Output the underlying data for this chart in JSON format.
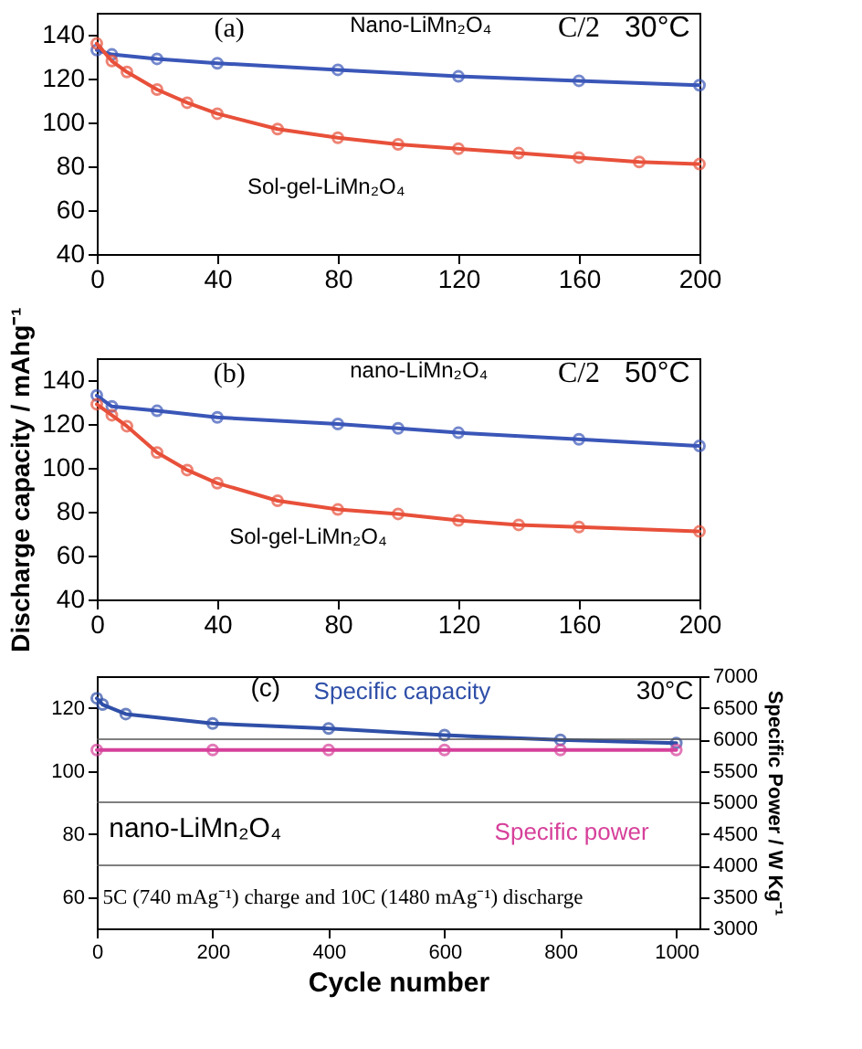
{
  "chart_data": [
    {
      "type": "line",
      "marker": "circle",
      "xlim": [
        0,
        200
      ],
      "xticks": [
        0,
        40,
        80,
        120,
        160,
        200
      ],
      "ylim": [
        40,
        150
      ],
      "yticks": [
        40,
        60,
        80,
        100,
        120,
        140
      ],
      "annotations": [
        "(a)",
        "C/2",
        "30°C"
      ],
      "series": [
        {
          "name": "Nano-LiMn₂O₄",
          "color": "#3a56b8",
          "x": [
            0,
            5,
            20,
            40,
            80,
            120,
            160,
            200
          ],
          "values": [
            133,
            131,
            129,
            127,
            124,
            121,
            119,
            117
          ]
        },
        {
          "name": "Sol-gel-LiMn₂O₄",
          "color": "#e8503a",
          "x": [
            0,
            5,
            10,
            20,
            30,
            40,
            60,
            80,
            100,
            120,
            140,
            160,
            180,
            200
          ],
          "values": [
            136,
            128,
            123,
            115,
            109,
            104,
            97,
            93,
            90,
            88,
            86,
            84,
            82,
            81
          ]
        }
      ]
    },
    {
      "type": "line",
      "marker": "circle",
      "ylabel": "Discharge capacity / mAhg⁻¹",
      "xlim": [
        0,
        200
      ],
      "xticks": [
        0,
        40,
        80,
        120,
        160,
        200
      ],
      "ylim": [
        40,
        150
      ],
      "yticks": [
        40,
        60,
        80,
        100,
        120,
        140
      ],
      "annotations": [
        "(b)",
        "C/2",
        "50°C"
      ],
      "series": [
        {
          "name": "nano-LiMn₂O₄",
          "color": "#3a56b8",
          "x": [
            0,
            5,
            20,
            40,
            80,
            100,
            120,
            160,
            200
          ],
          "values": [
            133,
            128,
            126,
            123,
            120,
            118,
            116,
            113,
            110
          ]
        },
        {
          "name": "Sol-gel-LiMn₂O₄",
          "color": "#e8503a",
          "x": [
            0,
            5,
            10,
            20,
            30,
            40,
            60,
            80,
            100,
            120,
            140,
            160,
            200
          ],
          "values": [
            129,
            124,
            119,
            107,
            99,
            93,
            85,
            81,
            79,
            76,
            74,
            73,
            71
          ]
        }
      ]
    },
    {
      "type": "line",
      "marker": "circle",
      "xlabel": "Cycle number",
      "y2label": "Specific Power / W Kg⁻¹",
      "xlim": [
        0,
        1040
      ],
      "xticks": [
        0,
        200,
        400,
        600,
        800,
        1000
      ],
      "ylim": [
        50,
        130
      ],
      "yticks": [
        60,
        80,
        100,
        120
      ],
      "y2lim": [
        3000,
        7000
      ],
      "y2ticks": [
        3000,
        3500,
        4000,
        4500,
        5000,
        5500,
        6000,
        6500,
        7000
      ],
      "annotations": [
        "(c)",
        "30°C",
        "nano-LiMn₂O₄",
        "5C (740 mAg⁻¹) charge and 10C (1480 mAg⁻¹) discharge"
      ],
      "ref_lines": [
        {
          "axis": "y2",
          "value": 6000,
          "label": null
        },
        {
          "axis": "y2",
          "value": 5000,
          "label": null
        },
        {
          "axis": "y2",
          "value": 4000,
          "label": null
        }
      ],
      "series": [
        {
          "name": "Specific capacity",
          "color": "#2f4fa8",
          "x": [
            0,
            10,
            50,
            200,
            400,
            600,
            800,
            1000
          ],
          "values": [
            123,
            121,
            118,
            115,
            113.4,
            111.3,
            109.8,
            108.8
          ]
        },
        {
          "name": "Specific power",
          "color": "#d6409a",
          "axis": "y2",
          "x": [
            0,
            200,
            400,
            600,
            800,
            1000
          ],
          "values": [
            5830,
            5830,
            5830,
            5830,
            5830,
            5830
          ]
        }
      ]
    }
  ]
}
